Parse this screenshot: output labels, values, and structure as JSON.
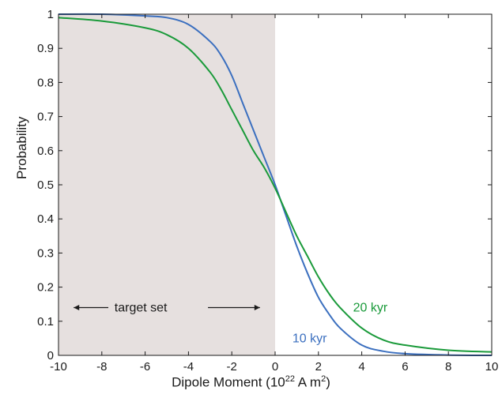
{
  "chart_data": {
    "type": "line",
    "xlabel_main": "Dipole Moment (10",
    "xlabel_exp1": "22",
    "xlabel_mid": " A m",
    "xlabel_exp2": "2",
    "xlabel_end": ")",
    "ylabel": "Probability",
    "xlim": [
      -10,
      10
    ],
    "ylim": [
      0,
      1
    ],
    "xticks": [
      -10,
      -8,
      -6,
      -4,
      -2,
      0,
      2,
      4,
      6,
      8,
      10
    ],
    "yticks": [
      0,
      0.1,
      0.2,
      0.3,
      0.4,
      0.5,
      0.6,
      0.7,
      0.8,
      0.9,
      1
    ],
    "ytick_labels": [
      "0",
      "0.1",
      "0.2",
      "0.3",
      "0.4",
      "0.5",
      "0.6",
      "0.7",
      "0.8",
      "0.9",
      "1"
    ],
    "grid": false,
    "shaded_region": {
      "x_from": -10,
      "x_to": 0,
      "color": "#e6e0df",
      "label": "target set"
    },
    "series": [
      {
        "name": "10 kyr",
        "color": "#3b6fbf",
        "x": [
          -10,
          -8,
          -6,
          -5,
          -4,
          -3,
          -2.5,
          -2,
          -1.5,
          -1,
          -0.5,
          0,
          0.5,
          1,
          1.5,
          2,
          2.5,
          3,
          4,
          5,
          6,
          8,
          10
        ],
        "y": [
          1.0,
          1.0,
          0.995,
          0.99,
          0.97,
          0.92,
          0.88,
          0.82,
          0.74,
          0.66,
          0.58,
          0.5,
          0.41,
          0.32,
          0.24,
          0.17,
          0.12,
          0.08,
          0.03,
          0.012,
          0.005,
          0.001,
          0.0
        ]
      },
      {
        "name": "20 kyr",
        "color": "#1a9a3a",
        "x": [
          -10,
          -8,
          -6,
          -5,
          -4,
          -3,
          -2.5,
          -2,
          -1.5,
          -1,
          -0.5,
          0,
          0.5,
          1,
          1.5,
          2,
          2.5,
          3,
          4,
          5,
          6,
          8,
          10
        ],
        "y": [
          0.99,
          0.98,
          0.96,
          0.94,
          0.9,
          0.83,
          0.78,
          0.72,
          0.66,
          0.6,
          0.55,
          0.49,
          0.42,
          0.35,
          0.29,
          0.23,
          0.18,
          0.14,
          0.08,
          0.045,
          0.03,
          0.015,
          0.01
        ]
      }
    ]
  }
}
